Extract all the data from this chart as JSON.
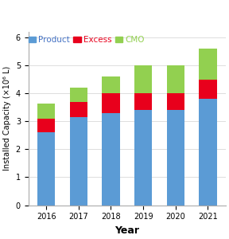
{
  "years": [
    "2016",
    "2017",
    "2018",
    "2019",
    "2020",
    "2021"
  ],
  "product": [
    2.6,
    3.15,
    3.3,
    3.4,
    3.4,
    3.8
  ],
  "excess": [
    0.5,
    0.55,
    0.7,
    0.6,
    0.6,
    0.7
  ],
  "cmo": [
    0.55,
    0.5,
    0.6,
    1.0,
    1.0,
    1.1
  ],
  "color_product": "#5b9bd5",
  "color_excess": "#e8001c",
  "color_cmo": "#92d050",
  "ylabel": "Installed Capacity (×10⁶ L)",
  "xlabel": "Year",
  "ylim": [
    0,
    6.2
  ],
  "yticks": [
    0,
    1,
    2,
    3,
    4,
    5,
    6
  ],
  "legend_labels": [
    "Product",
    "Excess",
    "CMO"
  ],
  "legend_colors": [
    "#4472c4",
    "#e8001c",
    "#92d050"
  ],
  "bar_color_product": "#5b9bd5",
  "title_fontsize": 8,
  "tick_fontsize": 7,
  "label_fontsize": 8,
  "legend_fontsize": 7.5
}
